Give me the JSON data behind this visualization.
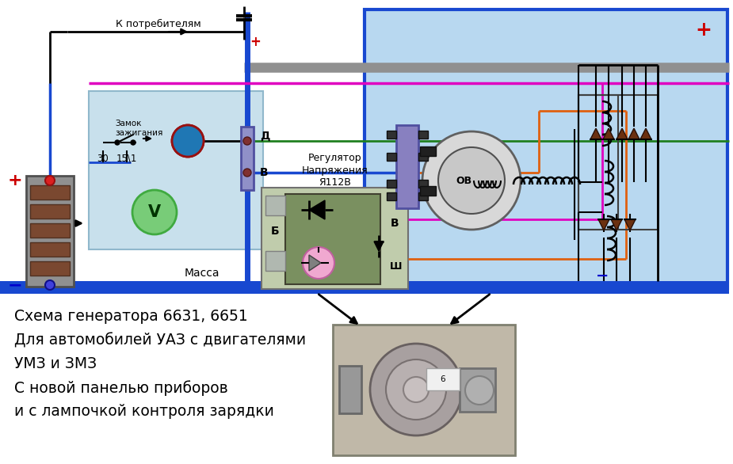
{
  "bg_color": "#ffffff",
  "gen_bg": "#b8d8f0",
  "left_panel_bg": "#c8e0ec",
  "title_lines": [
    "Схема генератора 6631, 6651",
    "Для автомобилей УАЗ с двигателями",
    "УМЗ и ЗМЗ",
    "С новой панелью приборов",
    "и с лампочкой контроля зарядки"
  ],
  "colors": {
    "blue": "#1040c8",
    "blue_thick": "#1848d0",
    "magenta": "#e000c0",
    "green": "#208020",
    "orange": "#e06010",
    "gray_wire": "#909090",
    "dark": "#303030",
    "black": "#000000",
    "red_label": "#cc0000",
    "blue_label": "#0000cc",
    "brown_diode": "#6b3010"
  }
}
